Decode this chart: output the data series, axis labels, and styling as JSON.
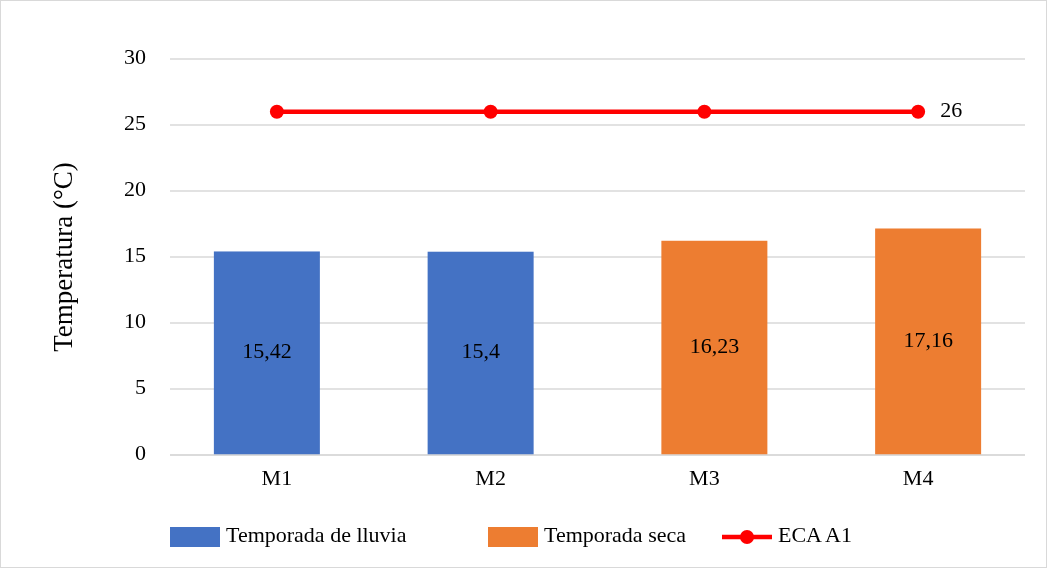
{
  "chart_data": {
    "type": "bar",
    "ylabel": "Temperatura (°C)",
    "categories": [
      "M1",
      "M2",
      "M3",
      "M4"
    ],
    "series": [
      {
        "name": "Temporada de lluvia",
        "color": "#4472c4",
        "values": [
          15.42,
          15.4,
          null,
          null
        ],
        "value_labels": [
          "15,42",
          "15,4",
          null,
          null
        ]
      },
      {
        "name": "Temporada seca",
        "color": "#ed7d31",
        "values": [
          null,
          null,
          16.23,
          17.16
        ],
        "value_labels": [
          null,
          null,
          "16,23",
          "17,16"
        ]
      },
      {
        "name": "ECA A1",
        "type": "line",
        "color": "#ff0000",
        "values": [
          26,
          26,
          26,
          26
        ],
        "value_labels": [
          null,
          null,
          null,
          "26"
        ],
        "marker": "circle"
      }
    ],
    "ylim": [
      0,
      30
    ],
    "yticks": [
      0,
      5,
      10,
      15,
      20,
      25,
      30
    ],
    "grid": "y",
    "legend": "bottom"
  }
}
